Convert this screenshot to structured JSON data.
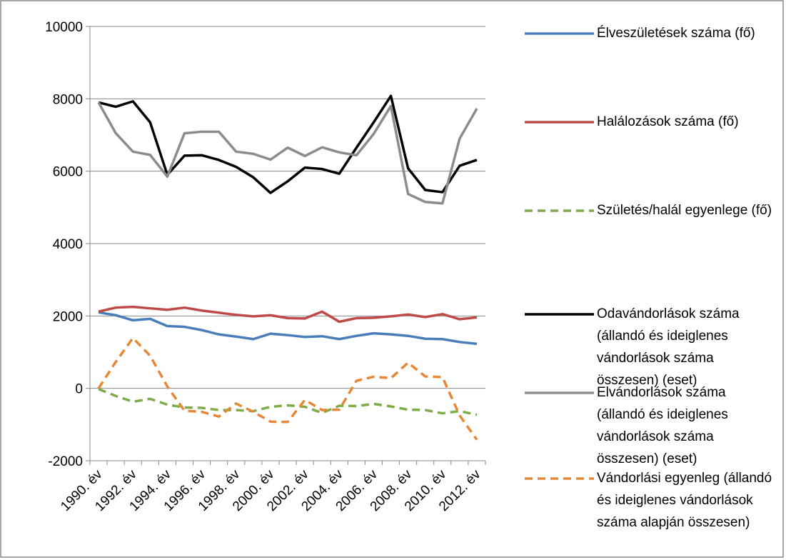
{
  "chart_data": {
    "type": "line",
    "categories": [
      "1990. év",
      null,
      "1992. év",
      null,
      "1994. év",
      null,
      "1996. év",
      null,
      "1998. év",
      null,
      "2000. év",
      null,
      "2002. év",
      null,
      "2004. év",
      null,
      "2006. év",
      null,
      "2008. év",
      null,
      "2010. év",
      null,
      "2012. év"
    ],
    "ylim": [
      -2000,
      10000
    ],
    "yticks": [
      -2000,
      0,
      2000,
      4000,
      6000,
      8000,
      10000
    ],
    "grid": true,
    "legend": "right",
    "series": [
      {
        "name": "Élveszületések száma (fő)",
        "color": "#4a7ebb",
        "dash": false,
        "values": [
          2100,
          2020,
          1880,
          1920,
          1720,
          1700,
          1610,
          1490,
          1430,
          1360,
          1510,
          1470,
          1420,
          1440,
          1360,
          1450,
          1520,
          1490,
          1450,
          1370,
          1360,
          1280,
          1230
        ]
      },
      {
        "name": "Halálozások száma (fő)",
        "color": "#be4b48",
        "dash": false,
        "values": [
          2120,
          2230,
          2250,
          2210,
          2170,
          2230,
          2150,
          2090,
          2030,
          1990,
          2020,
          1940,
          1930,
          2120,
          1840,
          1940,
          1950,
          1990,
          2040,
          1970,
          2050,
          1910,
          1960
        ]
      },
      {
        "name": "Születés/halál egyenlege (fő)",
        "color": "#7eac48",
        "dash": true,
        "values": [
          -20,
          -210,
          -370,
          -290,
          -450,
          -530,
          -540,
          -600,
          -600,
          -630,
          -510,
          -470,
          -510,
          -680,
          -480,
          -490,
          -430,
          -500,
          -590,
          -600,
          -690,
          -630,
          -730
        ]
      },
      {
        "name": "Odavándorlások száma (állandó és ideiglenes vándorlások száma összesen) (eset)",
        "color": "#000000",
        "dash": false,
        "values": [
          7900,
          7780,
          7930,
          7350,
          5900,
          6430,
          6440,
          6310,
          6120,
          5830,
          5400,
          5720,
          6100,
          6060,
          5930,
          6650,
          7350,
          8080,
          6080,
          5480,
          5420,
          6150,
          6310
        ]
      },
      {
        "name": "Elvándorlások száma (állandó és ideiglenes vándorlások száma összesen) (eset)",
        "color": "#8c8c8c",
        "dash": false,
        "values": [
          7900,
          7050,
          6540,
          6450,
          5850,
          7050,
          7090,
          7090,
          6540,
          6480,
          6320,
          6650,
          6420,
          6660,
          6520,
          6440,
          7030,
          7800,
          5370,
          5150,
          5110,
          6900,
          7730
        ]
      },
      {
        "name": "Vándorlási egyenleg (állandó és ideiglenes vándorlások száma alapján összesen)",
        "color": "#e6883a",
        "dash": true,
        "values": [
          0,
          730,
          1390,
          900,
          50,
          -620,
          -650,
          -780,
          -420,
          -650,
          -920,
          -930,
          -320,
          -600,
          -590,
          210,
          320,
          280,
          710,
          330,
          310,
          -750,
          -1420
        ]
      }
    ]
  }
}
